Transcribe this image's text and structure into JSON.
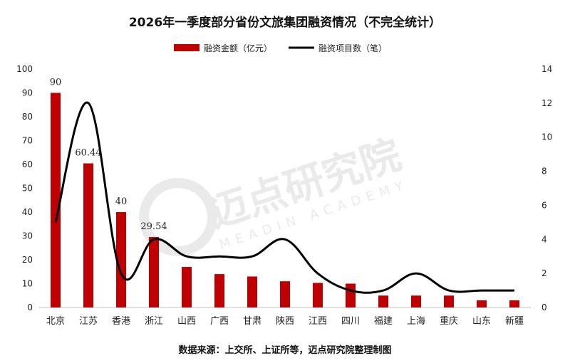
{
  "chart_data": {
    "type": "bar",
    "title": "2026年一季度部分省份文旅集团融资情况（不完全统计）",
    "categories": [
      "北京",
      "江苏",
      "香港",
      "浙江",
      "山西",
      "广西",
      "甘肃",
      "陕西",
      "江西",
      "四川",
      "福建",
      "上海",
      "重庆",
      "山东",
      "新疆"
    ],
    "series": [
      {
        "name": "融资金额（亿元）",
        "type": "bar",
        "axis": "left",
        "color": "#c00000",
        "values": [
          90,
          60.44,
          40,
          29.54,
          17,
          14,
          13,
          11,
          10.3,
          10,
          5,
          5,
          5,
          3,
          3
        ]
      },
      {
        "name": "融资项目数（笔）",
        "type": "line",
        "axis": "right",
        "color": "#000000",
        "values": [
          5,
          12,
          2,
          4,
          3,
          3,
          3,
          4,
          2,
          1,
          1,
          2,
          1,
          1,
          1
        ]
      }
    ],
    "data_labels": [
      {
        "index": 0,
        "text": "90"
      },
      {
        "index": 1,
        "text": "60.44"
      },
      {
        "index": 2,
        "text": "40"
      },
      {
        "index": 3,
        "text": "29.54"
      }
    ],
    "y_left": {
      "min": 0,
      "max": 100,
      "step": 10,
      "ticks": [
        "0",
        "10",
        "20",
        "30",
        "40",
        "50",
        "60",
        "70",
        "80",
        "90",
        "100"
      ]
    },
    "y_right": {
      "min": 0,
      "max": 14,
      "step": 2,
      "ticks": [
        "0",
        "2",
        "4",
        "6",
        "8",
        "10",
        "12",
        "14"
      ]
    },
    "legend_position": "top-center",
    "grid": false
  },
  "watermark": {
    "name": "迈点研究院",
    "subtitle": "MEADIN ACADEMY"
  },
  "source_note": "数据来源：上交所、上证所等，迈点研究院整理制图"
}
